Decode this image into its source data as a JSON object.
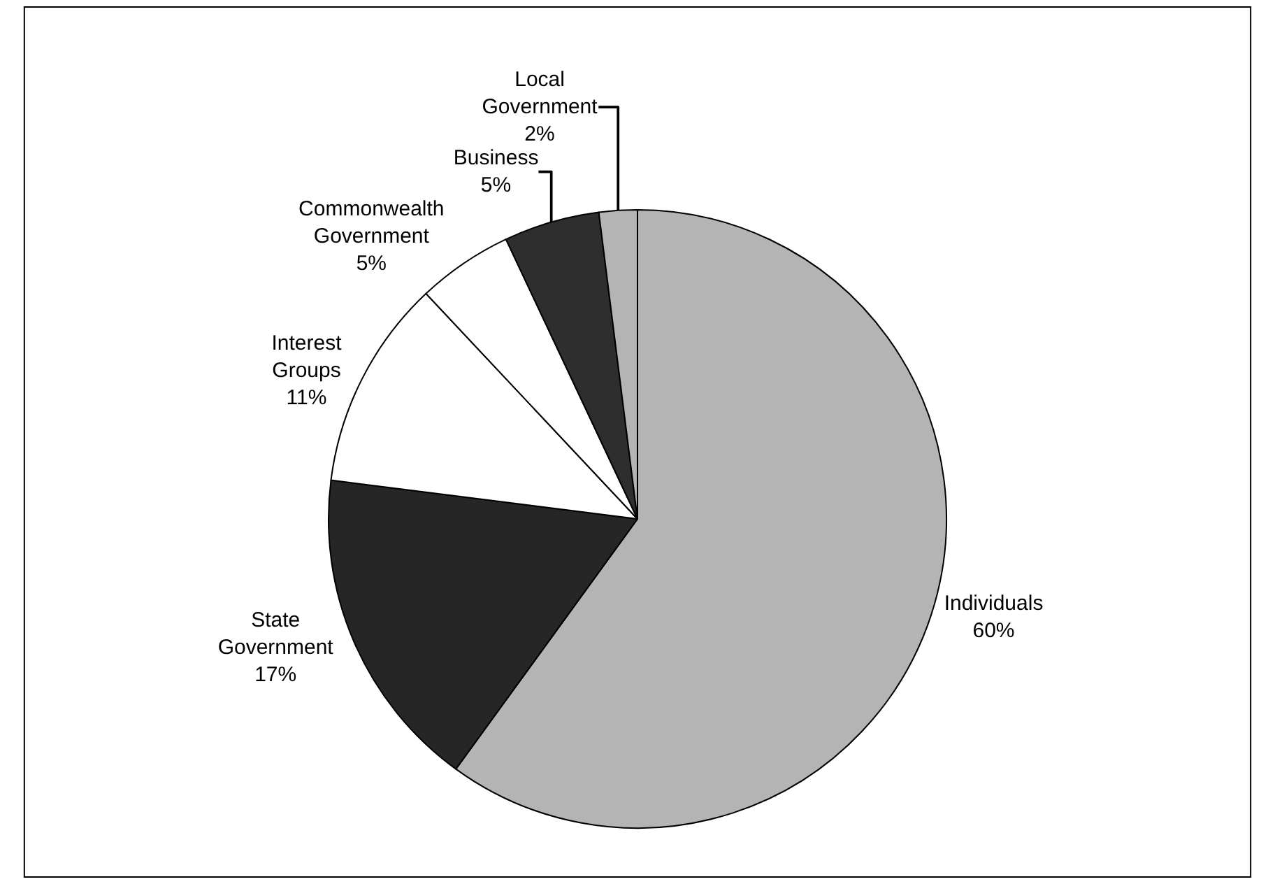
{
  "chart_data": {
    "type": "pie",
    "categories": [
      "Individuals",
      "State Government",
      "Interest Groups",
      "Commonwealth Government",
      "Business",
      "Local Government"
    ],
    "values": [
      60,
      17,
      11,
      5,
      5,
      2
    ],
    "value_labels": [
      "60%",
      "17%",
      "11%",
      "5%",
      "5%",
      "2%"
    ],
    "colors": [
      "#b4b4b4",
      "#262626",
      "#ffffff",
      "#ffffff",
      "#2e2e2e",
      "#b4b4b4"
    ],
    "legend": false
  }
}
